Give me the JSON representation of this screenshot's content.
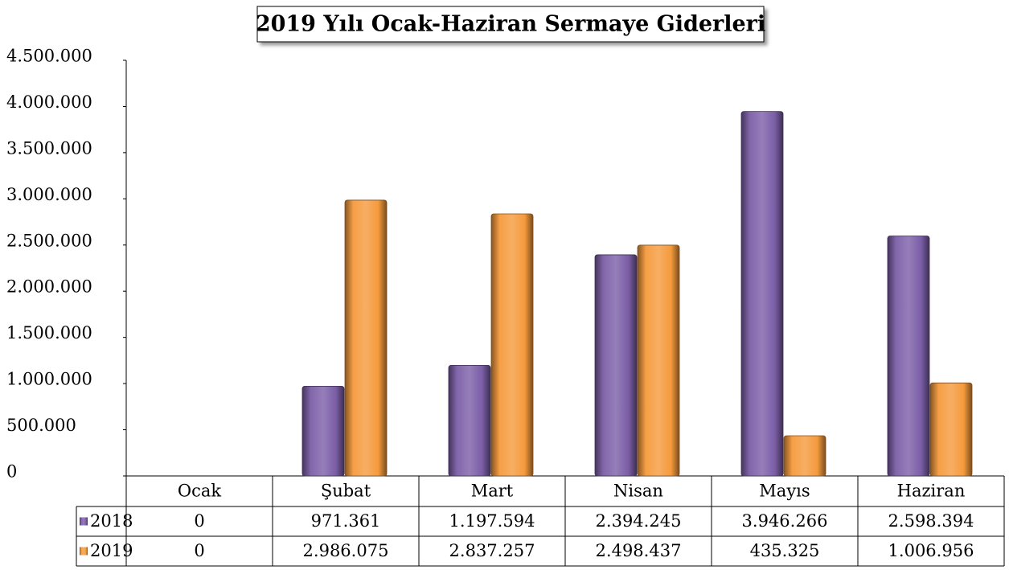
{
  "chart_data": {
    "type": "bar",
    "title": "2019 Yılı Ocak-Haziran Sermaye Giderleri",
    "categories": [
      "Ocak",
      "Şubat",
      "Mart",
      "Nisan",
      "Mayıs",
      "Haziran"
    ],
    "series": [
      {
        "name": "2018",
        "color": "#7b5ea7",
        "values": [
          0,
          971361,
          1197594,
          2394245,
          3946266,
          2598394
        ],
        "value_labels": [
          "0",
          "971.361",
          "1.197.594",
          "2.394.245",
          "3.946.266",
          "2.598.394"
        ]
      },
      {
        "name": "2019",
        "color": "#f59a3c",
        "values": [
          0,
          2986075,
          2837257,
          2498437,
          435325,
          1006956
        ],
        "value_labels": [
          "0",
          "2.986.075",
          "2.837.257",
          "2.498.437",
          "435.325",
          "1.006.956"
        ]
      }
    ],
    "ylim": [
      0,
      4500000
    ],
    "yticks": [
      0,
      {
        "value": 500000,
        "label": "500.000"
      },
      {
        "value": 1000000,
        "label": "1.000.000"
      },
      {
        "value": 1500000,
        "label": "1.500.000"
      },
      {
        "value": 2000000,
        "label": "2.000.000"
      },
      {
        "value": 2500000,
        "label": "2.500.000"
      },
      {
        "value": 3000000,
        "label": "3.000.000"
      },
      {
        "value": 3500000,
        "label": "3.500.000"
      },
      {
        "value": 4000000,
        "label": "4.000.000"
      },
      {
        "value": 4500000,
        "label": "4.500.000"
      }
    ],
    "grid": false
  }
}
